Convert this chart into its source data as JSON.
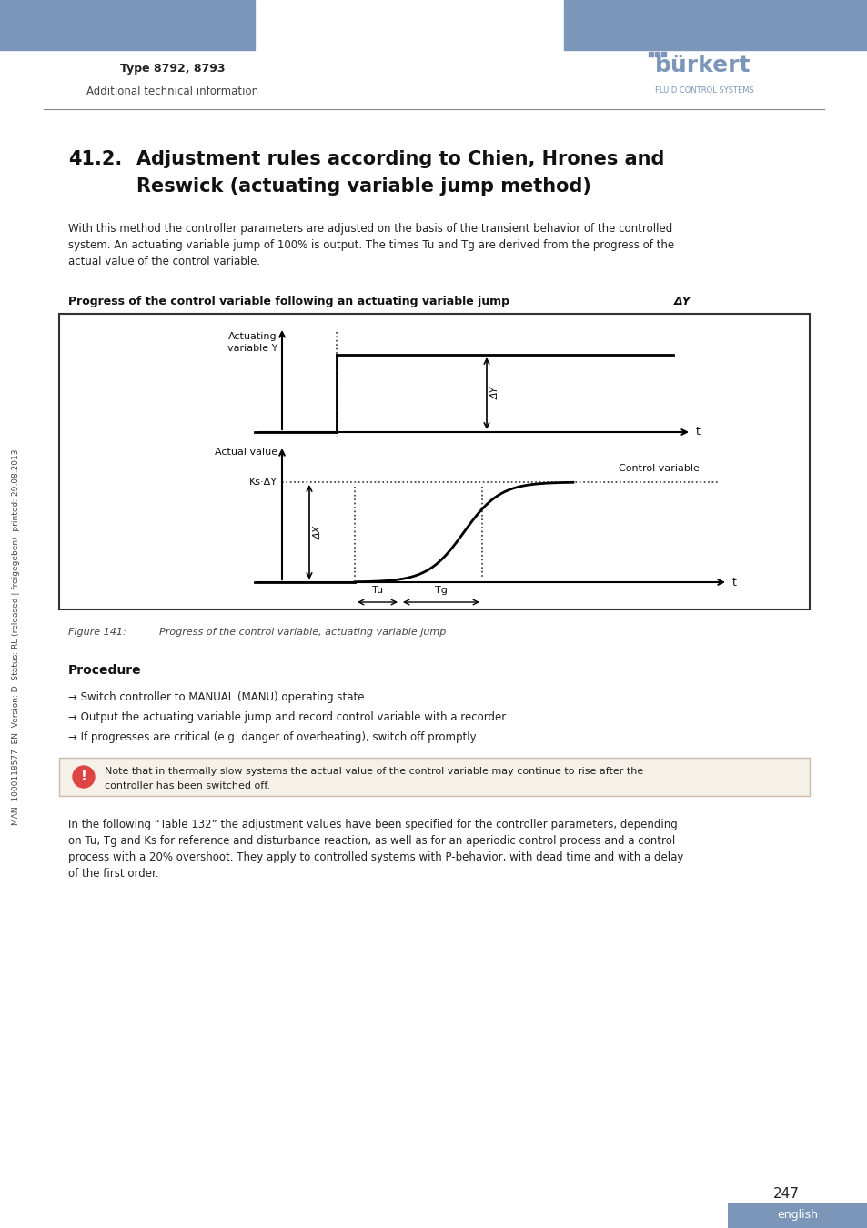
{
  "page_bg": "#ffffff",
  "header_bar_color": "#7b96b8",
  "header_text1": "Type 8792, 8793",
  "header_text2": "Additional technical information",
  "burkert_color": "#7b96b8",
  "title": "41.2.  Adjustment rules according to Chien, Hrones and\n     Reswick (actuating variable jump method)",
  "body_text": "With this method the controller parameters are adjusted on the basis of the transient behavior of the controlled system. An actuating variable jump of 100% is output. The times Tu and Tg are derived from the progress of the actual value of the control variable.",
  "fig_label_bold": "Progress of the control variable following an actuating variable jump ΔY",
  "figure_caption": "Figure 141:   Progress of the control variable, actuating variable jump",
  "procedure_title": "Procedure",
  "procedure_items": [
    "→ Switch controller to MANUAL (MANU) operating state",
    "→ Output the actuating variable jump and record control variable with a recorder",
    "→ If progresses are critical (e.g. danger of overheating), switch off promptly."
  ],
  "note_text": "Note that in thermally slow systems the actual value of the control variable may continue to rise after the\ncontroller has been switched off.",
  "footer_text": "In the following “Table 132” the adjustment values have been specified for the controller parameters, depending on Tu, Tg and Ks for reference and disturbance reaction, as well as for an aperiodic control process and a control process with a 20% overshoot. They apply to controlled systems with P-behavior, with dead time and with a delay of the first order.",
  "page_number": "247",
  "sidebar_text": "MAN  1000118577  EN  Version: D  Status: RL (released | freigegeben)  printed: 29.08.2013",
  "lang_label": "english"
}
